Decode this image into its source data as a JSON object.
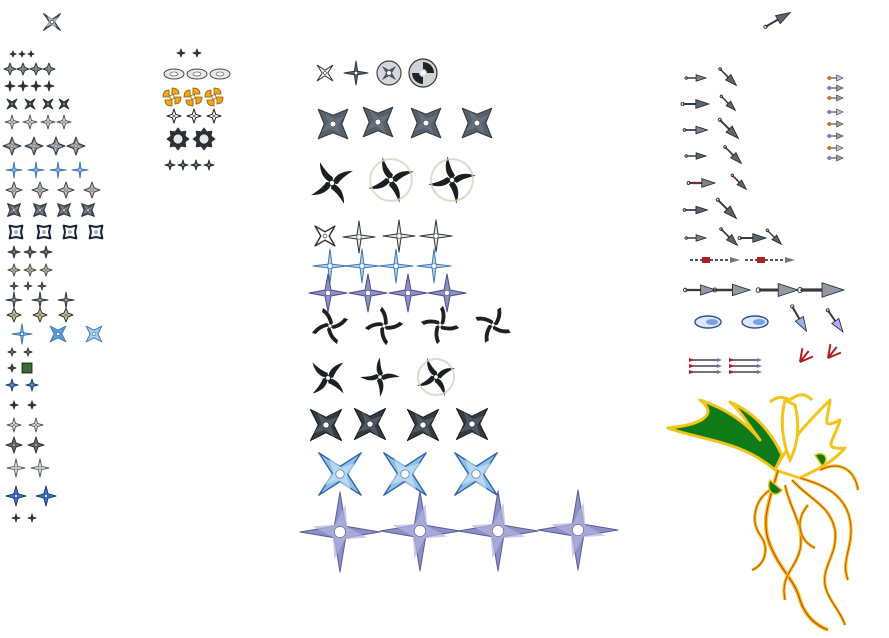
{
  "sheet": {
    "background": "#ffffff",
    "panels": [
      {
        "name": "small-stars-column",
        "sprites": [
          "shuriken-4",
          "shuriken-wavy",
          "shuriken-spinner",
          "kunai"
        ]
      },
      {
        "name": "medium-stars-column",
        "sprites": [
          "shuriken-ring",
          "shuriken-swirl",
          "shuriken-gear"
        ]
      },
      {
        "name": "large-stars-column",
        "sprites": [
          "shuriken-4",
          "shuriken-curved",
          "shuriken-ribbon",
          "shuriken-flat"
        ]
      },
      {
        "name": "kunai-column",
        "sprites": [
          "kunai",
          "dart",
          "blade-tip",
          "feather-arrow"
        ]
      },
      {
        "name": "phoenix-art",
        "sprites": [
          "phoenix"
        ]
      }
    ],
    "palette": {
      "steel": "#5b6570",
      "steel_dark": "#2f353c",
      "steel_light": "#aeb6bf",
      "ice": "#7fb6e6",
      "ice_dark": "#3f78b8",
      "lavender": "#8d90c6",
      "gold": "#f0a81a",
      "phoenix_outline": "#f3c41a",
      "phoenix_line": "#c9452a",
      "phoenix_green": "#0f7a18",
      "kunai_red": "#b02020"
    }
  }
}
